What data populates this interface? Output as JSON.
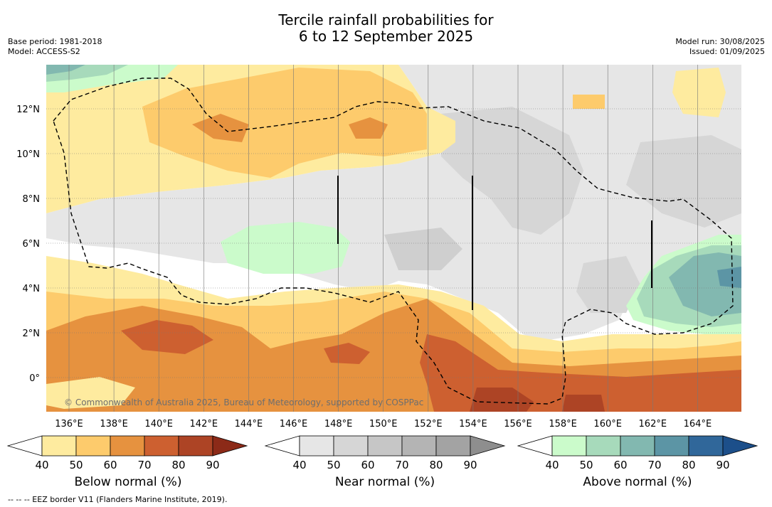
{
  "header": {
    "title_line1": "Tercile rainfall probabilities for",
    "title_line2": "6 to 12 September 2025",
    "base_period": "Base period: 1981-2018",
    "model": "Model: ACCESS-S2",
    "model_run": "Model run: 30/08/2025",
    "issued": "Issued: 01/09/2025"
  },
  "map": {
    "lon_labels": [
      "136°E",
      "138°E",
      "140°E",
      "142°E",
      "144°E",
      "146°E",
      "148°E",
      "150°E",
      "152°E",
      "154°E",
      "156°E",
      "158°E",
      "160°E",
      "162°E",
      "164°E"
    ],
    "lat_labels": [
      "12°N",
      "10°N",
      "8°N",
      "6°N",
      "4°N",
      "2°N",
      "0°"
    ],
    "copyright": "© Commonwealth of Australia 2025, Bureau of Meteorology, supported by COSPPac"
  },
  "colorbars": [
    {
      "label": "Below normal (%)",
      "ticks": [
        "40",
        "50",
        "60",
        "70",
        "80",
        "90"
      ],
      "colors": [
        "#ffffff",
        "#feeb9f",
        "#fdcb6c",
        "#e6923f",
        "#cd6030",
        "#ad4425",
        "#8c2a18"
      ]
    },
    {
      "label": "Near normal (%)",
      "ticks": [
        "40",
        "50",
        "60",
        "70",
        "80",
        "90"
      ],
      "colors": [
        "#ffffff",
        "#e6e6e6",
        "#d6d6d6",
        "#c6c6c6",
        "#b4b4b4",
        "#a3a3a3",
        "#8e8e8e"
      ]
    },
    {
      "label": "Above normal (%)",
      "ticks": [
        "40",
        "50",
        "60",
        "70",
        "80",
        "90"
      ],
      "colors": [
        "#ffffff",
        "#cbfbcb",
        "#a7dabb",
        "#82b8b0",
        "#5c95a5",
        "#30679a",
        "#1c4f8a"
      ]
    }
  ],
  "footnote": "-- -- -- EEZ border V11 (Flanders Marine Institute, 2019)."
}
